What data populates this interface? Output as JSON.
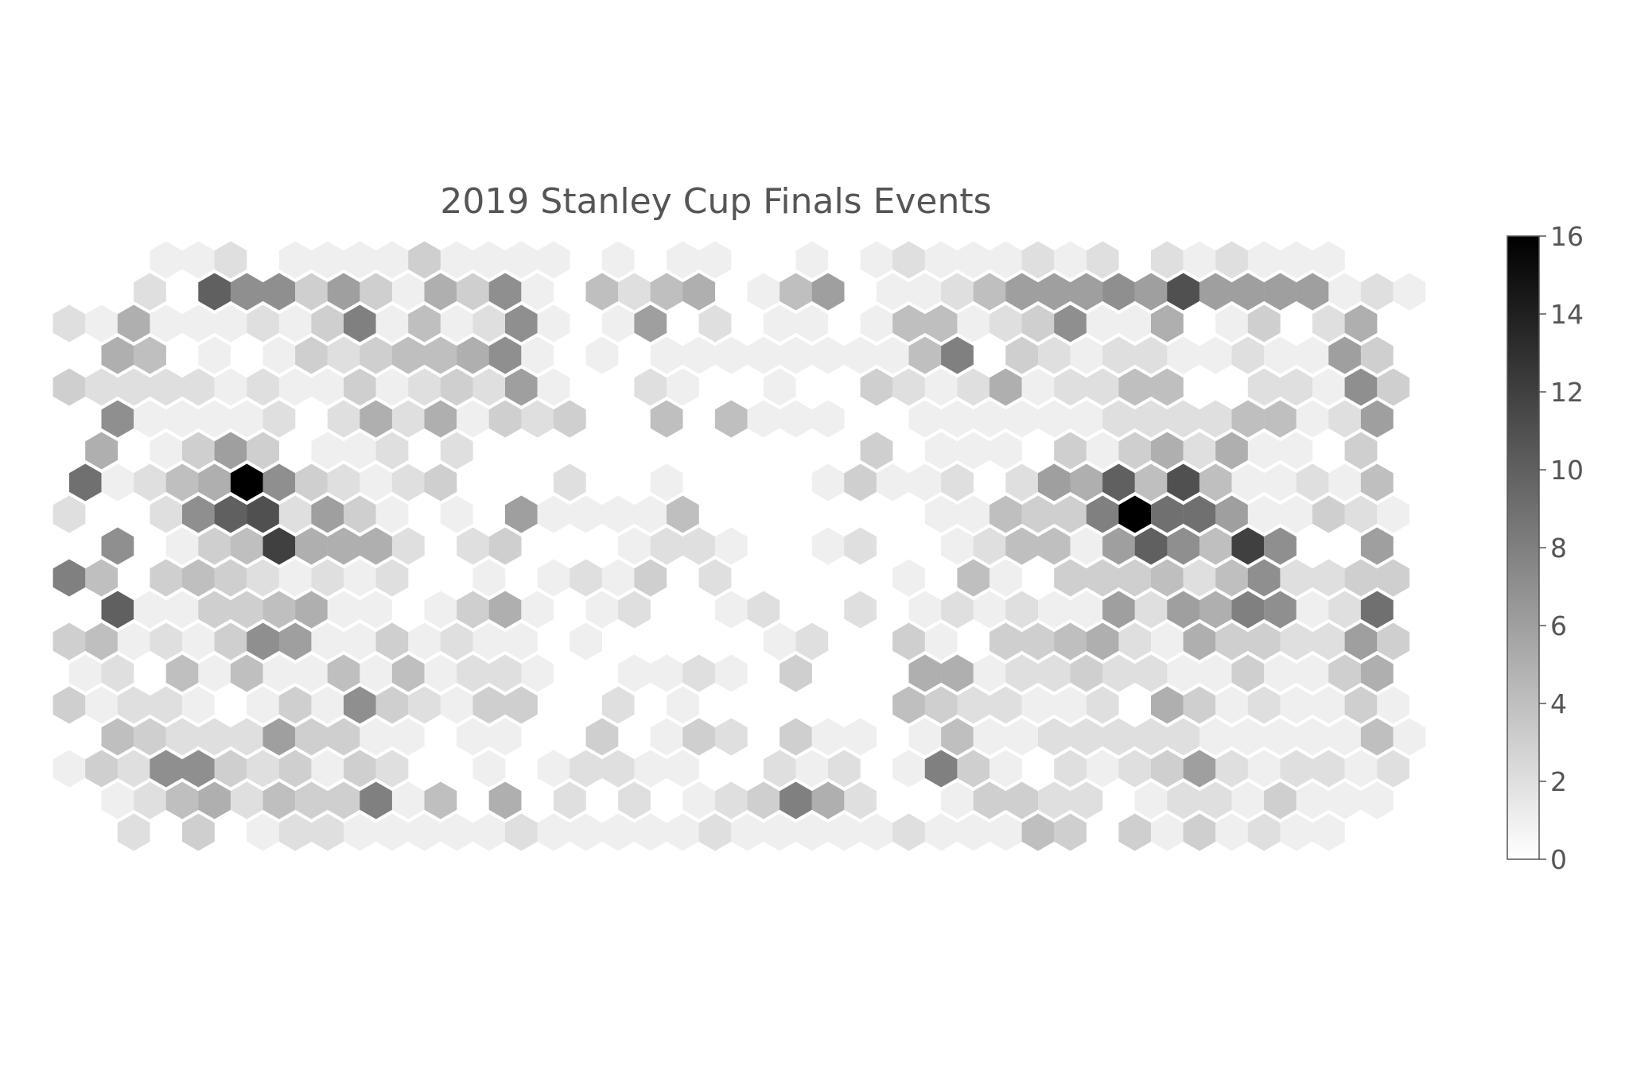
{
  "chart_data": {
    "type": "heatmap",
    "subtype": "hexbin",
    "title": "2019 Stanley Cup Finals Events",
    "xlabel": "",
    "ylabel": "",
    "axes_visible": false,
    "grid": false,
    "colormap": "Greys",
    "colorbar": {
      "position": "right",
      "range": [
        0,
        16
      ],
      "ticks": [
        0,
        2,
        4,
        6,
        8,
        10,
        12,
        14,
        16
      ]
    },
    "note": "hex cell counts on a 42 x 19 hex grid; row index 0 = top row, odd rows offset half a cell",
    "grid_size": {
      "columns": 42,
      "rows": 19
    },
    "rows": [
      [
        0,
        0,
        0,
        1,
        1,
        2,
        0,
        1,
        1,
        1,
        1,
        3,
        1,
        1,
        1,
        1,
        0,
        1,
        0,
        1,
        1,
        0,
        0,
        1,
        0,
        1,
        2,
        1,
        1,
        1,
        2,
        1,
        2,
        0,
        2,
        1,
        2,
        1,
        1,
        1,
        0,
        0
      ],
      [
        0,
        0,
        2,
        0,
        10,
        7,
        7,
        3,
        6,
        3,
        1,
        5,
        3,
        7,
        1,
        0,
        4,
        2,
        4,
        5,
        0,
        1,
        4,
        6,
        0,
        1,
        1,
        2,
        4,
        6,
        6,
        6,
        7,
        6,
        11,
        6,
        6,
        6,
        6,
        1,
        2,
        1
      ],
      [
        2,
        1,
        5,
        1,
        1,
        1,
        2,
        1,
        3,
        8,
        1,
        4,
        1,
        2,
        7,
        1,
        0,
        1,
        6,
        0,
        2,
        0,
        1,
        1,
        0,
        1,
        4,
        4,
        1,
        2,
        3,
        7,
        1,
        1,
        5,
        0,
        1,
        3,
        0,
        2,
        5,
        0
      ],
      [
        0,
        5,
        4,
        0,
        1,
        0,
        1,
        3,
        2,
        3,
        4,
        4,
        5,
        7,
        1,
        0,
        1,
        0,
        1,
        1,
        1,
        1,
        1,
        1,
        1,
        1,
        4,
        8,
        0,
        3,
        2,
        1,
        2,
        2,
        1,
        1,
        2,
        1,
        1,
        6,
        3,
        0
      ],
      [
        3,
        2,
        2,
        2,
        2,
        1,
        2,
        1,
        1,
        3,
        1,
        2,
        3,
        2,
        6,
        1,
        0,
        0,
        2,
        1,
        0,
        0,
        1,
        0,
        0,
        3,
        2,
        1,
        2,
        5,
        1,
        2,
        2,
        4,
        4,
        0,
        0,
        2,
        2,
        1,
        7,
        3
      ],
      [
        0,
        7,
        1,
        1,
        1,
        1,
        2,
        0,
        2,
        5,
        2,
        5,
        1,
        3,
        2,
        3,
        0,
        0,
        4,
        0,
        4,
        1,
        1,
        1,
        0,
        0,
        1,
        1,
        1,
        1,
        1,
        1,
        2,
        2,
        2,
        2,
        4,
        4,
        1,
        2,
        6,
        0
      ],
      [
        0,
        5,
        0,
        1,
        3,
        6,
        3,
        0,
        1,
        1,
        2,
        0,
        2,
        0,
        0,
        0,
        0,
        0,
        0,
        0,
        0,
        0,
        0,
        0,
        0,
        3,
        0,
        1,
        1,
        1,
        0,
        3,
        1,
        3,
        5,
        2,
        5,
        1,
        1,
        0,
        3,
        0
      ],
      [
        9,
        1,
        2,
        4,
        5,
        16,
        7,
        3,
        2,
        1,
        2,
        3,
        0,
        0,
        0,
        2,
        0,
        0,
        1,
        0,
        0,
        0,
        0,
        1,
        3,
        1,
        1,
        2,
        0,
        2,
        6,
        5,
        10,
        4,
        11,
        4,
        1,
        1,
        2,
        1,
        4,
        0
      ],
      [
        2,
        0,
        0,
        2,
        7,
        10,
        11,
        2,
        6,
        3,
        1,
        0,
        1,
        0,
        6,
        1,
        1,
        1,
        1,
        4,
        0,
        0,
        0,
        0,
        0,
        0,
        0,
        1,
        1,
        4,
        3,
        3,
        8,
        16,
        9,
        9,
        6,
        1,
        1,
        3,
        2,
        1
      ],
      [
        0,
        7,
        0,
        1,
        3,
        4,
        12,
        5,
        5,
        5,
        2,
        0,
        2,
        3,
        0,
        0,
        0,
        1,
        2,
        2,
        1,
        0,
        0,
        1,
        2,
        0,
        0,
        1,
        2,
        4,
        4,
        1,
        6,
        10,
        7,
        4,
        12,
        7,
        0,
        0,
        6,
        0
      ],
      [
        8,
        4,
        0,
        3,
        4,
        3,
        2,
        1,
        2,
        1,
        2,
        0,
        0,
        1,
        0,
        1,
        2,
        1,
        3,
        0,
        2,
        0,
        0,
        0,
        0,
        0,
        1,
        0,
        4,
        1,
        0,
        3,
        3,
        3,
        4,
        2,
        4,
        7,
        2,
        2,
        3,
        3
      ],
      [
        0,
        10,
        1,
        1,
        3,
        3,
        4,
        5,
        1,
        1,
        0,
        1,
        3,
        5,
        1,
        0,
        1,
        2,
        0,
        0,
        1,
        2,
        0,
        0,
        2,
        0,
        1,
        2,
        1,
        2,
        1,
        1,
        6,
        2,
        6,
        5,
        8,
        7,
        1,
        2,
        9,
        0
      ],
      [
        3,
        4,
        1,
        2,
        1,
        3,
        7,
        6,
        1,
        1,
        3,
        1,
        2,
        1,
        1,
        0,
        1,
        0,
        0,
        0,
        0,
        0,
        1,
        2,
        0,
        0,
        3,
        1,
        0,
        3,
        3,
        4,
        5,
        2,
        1,
        5,
        3,
        3,
        2,
        2,
        6,
        3
      ],
      [
        1,
        2,
        0,
        4,
        1,
        4,
        1,
        1,
        4,
        1,
        4,
        1,
        2,
        2,
        1,
        0,
        0,
        1,
        1,
        2,
        1,
        0,
        3,
        0,
        0,
        0,
        5,
        5,
        1,
        2,
        2,
        3,
        2,
        2,
        1,
        1,
        3,
        1,
        1,
        3,
        5,
        0
      ],
      [
        3,
        1,
        2,
        2,
        1,
        0,
        1,
        3,
        1,
        7,
        3,
        2,
        1,
        3,
        3,
        0,
        0,
        2,
        0,
        1,
        0,
        0,
        0,
        0,
        0,
        0,
        4,
        3,
        2,
        2,
        1,
        1,
        2,
        0,
        5,
        3,
        1,
        2,
        1,
        1,
        3,
        1
      ],
      [
        0,
        4,
        3,
        2,
        2,
        2,
        6,
        3,
        3,
        1,
        1,
        0,
        1,
        1,
        0,
        0,
        3,
        0,
        1,
        3,
        2,
        0,
        3,
        1,
        1,
        0,
        1,
        4,
        1,
        1,
        2,
        2,
        2,
        2,
        2,
        1,
        1,
        1,
        1,
        1,
        4,
        1
      ],
      [
        1,
        3,
        2,
        7,
        7,
        3,
        2,
        3,
        1,
        3,
        2,
        0,
        0,
        1,
        0,
        1,
        2,
        2,
        1,
        1,
        0,
        0,
        2,
        1,
        2,
        0,
        1,
        8,
        3,
        1,
        0,
        2,
        1,
        2,
        3,
        6,
        2,
        1,
        2,
        2,
        1,
        2
      ],
      [
        0,
        1,
        2,
        4,
        5,
        2,
        4,
        3,
        3,
        8,
        1,
        4,
        0,
        5,
        0,
        2,
        0,
        2,
        0,
        1,
        2,
        3,
        8,
        5,
        2,
        0,
        0,
        1,
        3,
        3,
        2,
        2,
        0,
        1,
        2,
        2,
        1,
        3,
        1,
        1,
        1,
        0
      ],
      [
        0,
        0,
        2,
        0,
        3,
        0,
        1,
        2,
        2,
        1,
        1,
        1,
        1,
        1,
        2,
        1,
        1,
        1,
        1,
        1,
        2,
        1,
        1,
        1,
        1,
        1,
        2,
        1,
        1,
        1,
        4,
        3,
        0,
        3,
        1,
        3,
        1,
        2,
        1,
        1,
        0,
        0
      ]
    ]
  }
}
